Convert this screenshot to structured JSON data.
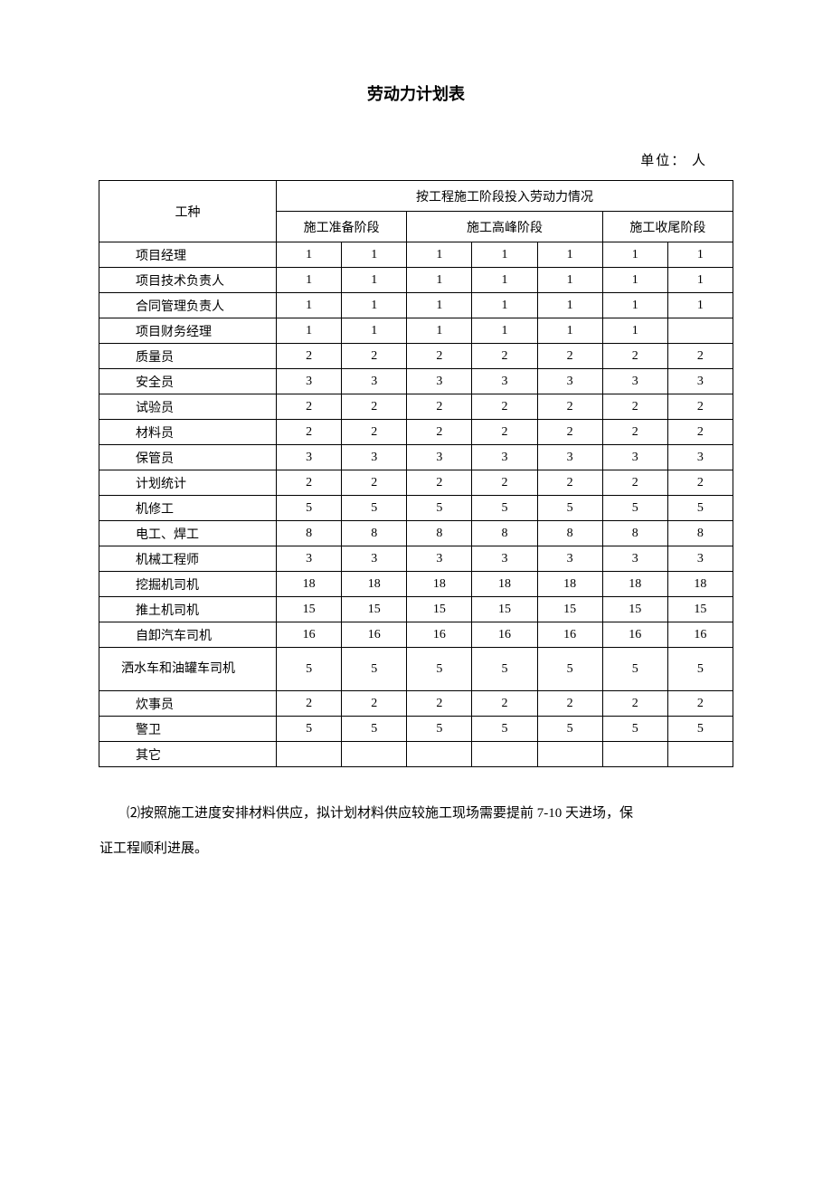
{
  "title": "劳动力计划表",
  "unit_label": "单位：   人",
  "table": {
    "row_header_label": "工种",
    "super_header": "按工程施工阶段投入劳动力情况",
    "phase_headers": [
      "施工准备阶段",
      "施工高峰阶段",
      "施工收尾阶段"
    ],
    "col_spans": [
      2,
      3,
      2
    ],
    "rows": [
      {
        "label": "项目经理",
        "values": [
          "1",
          "1",
          "1",
          "1",
          "1",
          "1",
          "1"
        ]
      },
      {
        "label": "项目技术负责人",
        "values": [
          "1",
          "1",
          "1",
          "1",
          "1",
          "1",
          "1"
        ]
      },
      {
        "label": "合同管理负责人",
        "values": [
          "1",
          "1",
          "1",
          "1",
          "1",
          "1",
          "1"
        ]
      },
      {
        "label": "项目财务经理",
        "values": [
          "1",
          "1",
          "1",
          "1",
          "1",
          "1",
          ""
        ]
      },
      {
        "label": "质量员",
        "values": [
          "2",
          "2",
          "2",
          "2",
          "2",
          "2",
          "2"
        ]
      },
      {
        "label": "安全员",
        "values": [
          "3",
          "3",
          "3",
          "3",
          "3",
          "3",
          "3"
        ]
      },
      {
        "label": "试验员",
        "values": [
          "2",
          "2",
          "2",
          "2",
          "2",
          "2",
          "2"
        ]
      },
      {
        "label": "材料员",
        "values": [
          "2",
          "2",
          "2",
          "2",
          "2",
          "2",
          "2"
        ]
      },
      {
        "label": "保管员",
        "values": [
          "3",
          "3",
          "3",
          "3",
          "3",
          "3",
          "3"
        ]
      },
      {
        "label": "计划统计",
        "values": [
          "2",
          "2",
          "2",
          "2",
          "2",
          "2",
          "2"
        ]
      },
      {
        "label": "机修工",
        "values": [
          "5",
          "5",
          "5",
          "5",
          "5",
          "5",
          "5"
        ]
      },
      {
        "label": "电工、焊工",
        "values": [
          "8",
          "8",
          "8",
          "8",
          "8",
          "8",
          "8"
        ]
      },
      {
        "label": "机械工程师",
        "values": [
          "3",
          "3",
          "3",
          "3",
          "3",
          "3",
          "3"
        ]
      },
      {
        "label": "挖掘机司机",
        "values": [
          "18",
          "18",
          "18",
          "18",
          "18",
          "18",
          "18"
        ]
      },
      {
        "label": "推土机司机",
        "values": [
          "15",
          "15",
          "15",
          "15",
          "15",
          "15",
          "15"
        ]
      },
      {
        "label": "自卸汽车司机",
        "values": [
          "16",
          "16",
          "16",
          "16",
          "16",
          "16",
          "16"
        ]
      },
      {
        "label": "洒水车和油罐车司机",
        "values": [
          "5",
          "5",
          "5",
          "5",
          "5",
          "5",
          "5"
        ],
        "tall": true,
        "wrap": true
      },
      {
        "label": "炊事员",
        "values": [
          "2",
          "2",
          "2",
          "2",
          "2",
          "2",
          "2"
        ]
      },
      {
        "label": "警卫",
        "values": [
          "5",
          "5",
          "5",
          "5",
          "5",
          "5",
          "5"
        ]
      },
      {
        "label": "其它",
        "values": [
          "",
          "",
          "",
          "",
          "",
          "",
          ""
        ]
      }
    ]
  },
  "paragraph_line1": "⑵按照施工进度安排材料供应，拟计划材料供应较施工现场需要提前 7-10 天进场，保",
  "paragraph_line2": "证工程顺利进展。"
}
